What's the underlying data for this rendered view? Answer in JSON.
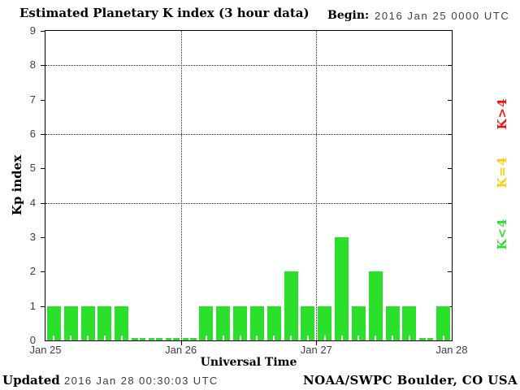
{
  "title": "Estimated Planetary K index (3 hour data)",
  "begin": {
    "label": "Begin:",
    "value": "2016 Jan 25 0000 UTC"
  },
  "footer": {
    "updated_label": "Updated",
    "updated_value": "2016 Jan 28 00:30:03 UTC",
    "source": "NOAA/SWPC Boulder, CO USA"
  },
  "legend": {
    "items": [
      {
        "label": "K>4",
        "color": "#ee1111"
      },
      {
        "label": "K=4",
        "color": "#ffcc00"
      },
      {
        "label": "K<4",
        "color": "#2ae02a"
      }
    ]
  },
  "chart_data": {
    "type": "bar",
    "title": "Estimated Planetary K index (3 hour data)",
    "xlabel": "Universal Time",
    "ylabel": "Kp index",
    "ylim": [
      0,
      9
    ],
    "yticks": [
      0,
      1,
      2,
      3,
      4,
      5,
      6,
      7,
      8,
      9
    ],
    "hgrid_values": [
      4,
      6,
      8
    ],
    "grid": "dotted",
    "legend_position": "right",
    "bin_hours": 3,
    "day_labels": [
      "Jan 25",
      "Jan 26",
      "Jan 27",
      "Jan 28"
    ],
    "values": [
      1,
      1,
      1,
      1,
      1,
      0,
      0,
      0,
      0,
      1,
      1,
      1,
      1,
      1,
      2,
      1,
      1,
      3,
      1,
      2,
      1,
      1,
      0,
      1
    ],
    "bar_color": "#2ae02a"
  }
}
